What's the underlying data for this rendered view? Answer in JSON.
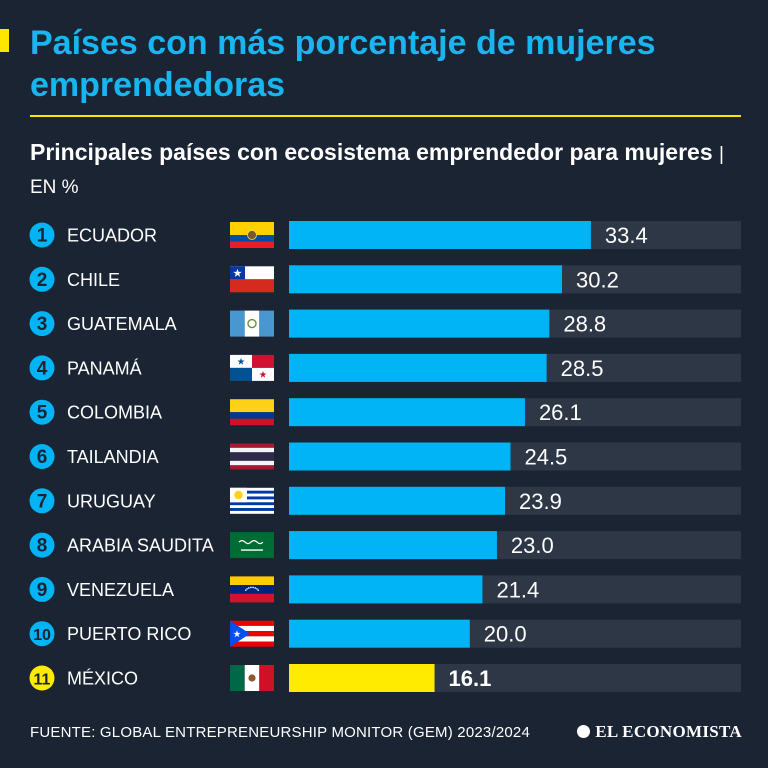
{
  "header": {
    "title": "Países con más porcentaje de mujeres emprendedoras",
    "subtitle": "Principales países con ecosistema emprendedor para mujeres",
    "unit": "| EN %"
  },
  "chart_data": {
    "type": "bar",
    "orientation": "horizontal",
    "title": "Países con más porcentaje de mujeres emprendedoras",
    "subtitle": "Principales países con ecosistema emprendedor para mujeres",
    "unit": "%",
    "xlim": [
      0,
      50
    ],
    "categories": [
      "ECUADOR",
      "CHILE",
      "GUATEMALA",
      "PANAMÁ",
      "COLOMBIA",
      "TAILANDIA",
      "URUGUAY",
      "ARABIA SAUDITA",
      "VENEZUELA",
      "PUERTO RICO",
      "MÉXICO"
    ],
    "ranks": [
      "1",
      "2",
      "3",
      "4",
      "5",
      "6",
      "7",
      "8",
      "9",
      "10",
      "11"
    ],
    "values": [
      33.4,
      30.2,
      28.8,
      28.5,
      26.1,
      24.5,
      23.9,
      23.0,
      21.4,
      20.0,
      16.1
    ],
    "value_labels": [
      "33.4",
      "30.2",
      "28.8",
      "28.5",
      "26.1",
      "24.5",
      "23.9",
      "23.0",
      "21.4",
      "20.0",
      "16.1"
    ],
    "flags": [
      "ecuador-flag",
      "chile-flag",
      "guatemala-flag",
      "panama-flag",
      "colombia-flag",
      "thailand-flag",
      "uruguay-flag",
      "saudi-arabia-flag",
      "venezuela-flag",
      "puerto-rico-flag",
      "mexico-flag"
    ],
    "highlight_index": 10,
    "grid": false,
    "legend": "none"
  },
  "colors": {
    "background": "#1b2433",
    "title": "#19b5f0",
    "bar": "#00b4f5",
    "bar_highlight": "#ffeb00",
    "track": "#2e3746",
    "accent": "#ffe600",
    "text": "#ffffff"
  },
  "footer": {
    "source": "FUENTE: GLOBAL ENTREPRENEURSHIP MONITOR (GEM) 2023/2024",
    "brand": "EL ECONOMISTA"
  }
}
